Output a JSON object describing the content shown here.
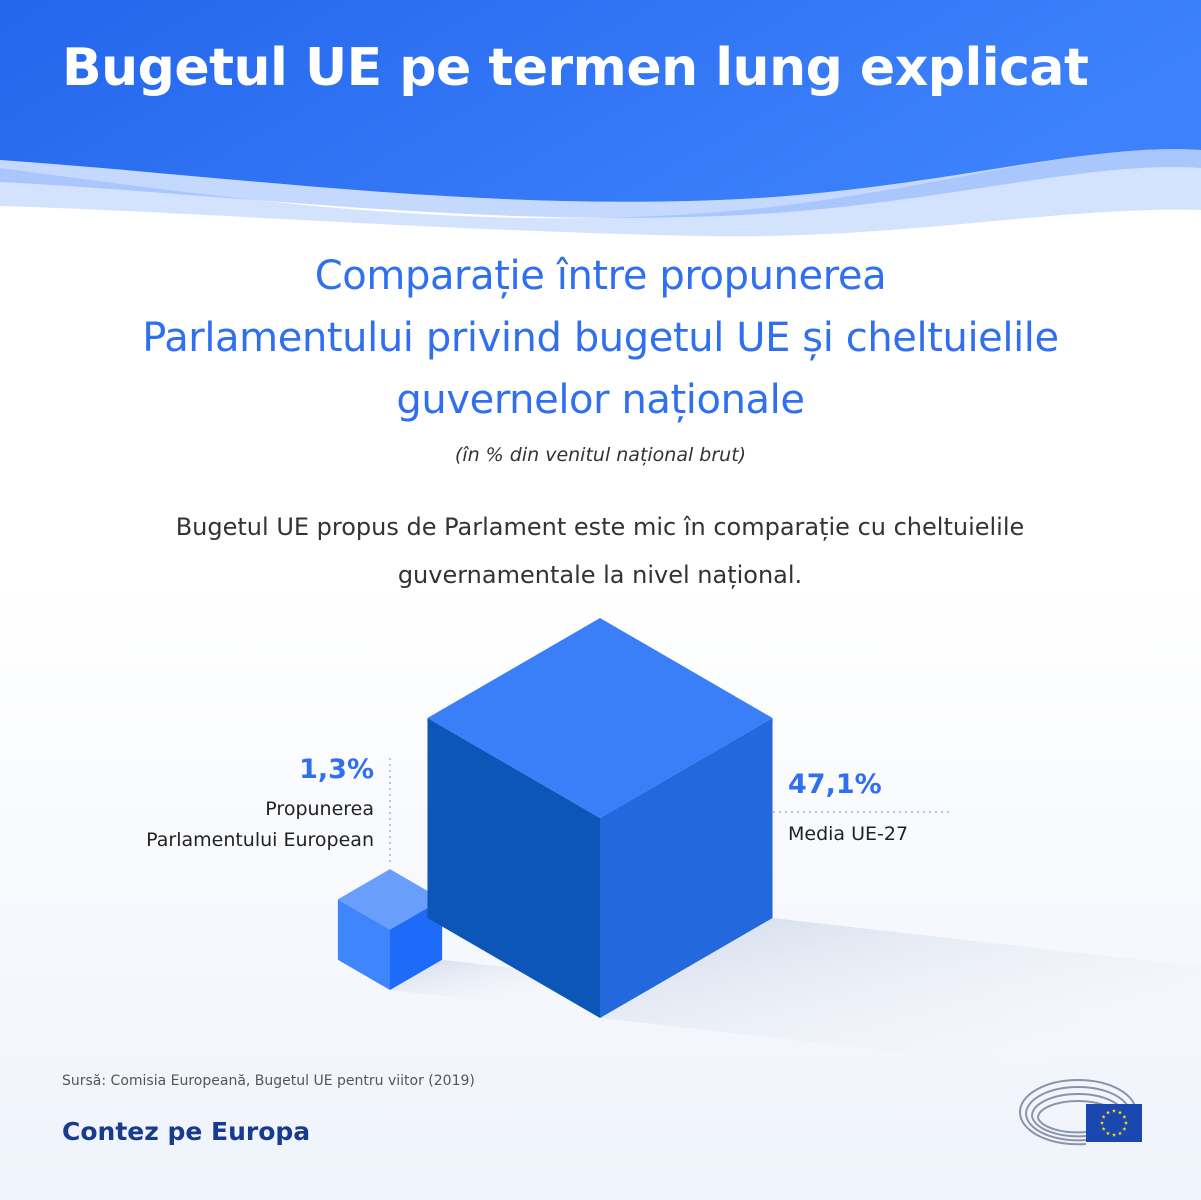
{
  "header": {
    "title": "Bugetul UE pe termen lung explicat"
  },
  "chart_data": {
    "type": "bar",
    "style": "isometric cubes",
    "title_lines": [
      "Comparație între propunerea",
      "Parlamentului privind bugetul UE și cheltuielile",
      "guvernelor naționale"
    ],
    "subtitle": "(în % din venitul național brut)",
    "categories": [
      "Propunerea Parlamentului European",
      "Media UE-27"
    ],
    "values": [
      1.3,
      47.1
    ],
    "unit": "%",
    "data_labels": [
      "1,3%",
      "47,1%"
    ],
    "category_labels": [
      [
        "Propunerea",
        "Parlamentului European"
      ],
      [
        "Media UE-27"
      ]
    ]
  },
  "intro_lines": [
    "Bugetul UE propus de Parlament este mic în comparație cu cheltuielile",
    "guvernamentale la nivel național."
  ],
  "source": "Sursă: Comisia Europeană, Bugetul UE pentru viitor (2019)",
  "footer": {
    "slogan": "Contez pe Europa"
  },
  "colors": {
    "header_blue": "#2f6ff0",
    "accent_blue": "#2f6ff0",
    "cube_top_large": "#3a7ef8",
    "cube_left_large": "#0c56b8",
    "cube_right_large": "#2368dc",
    "cube_top_small": "#6a9efd",
    "cube_left_small": "#3f86fd",
    "cube_right_small": "#1d6bf8",
    "footer_navy": "#173b8f",
    "eu_flag": "#1a47b0",
    "eu_stars": "#ffdd00"
  }
}
